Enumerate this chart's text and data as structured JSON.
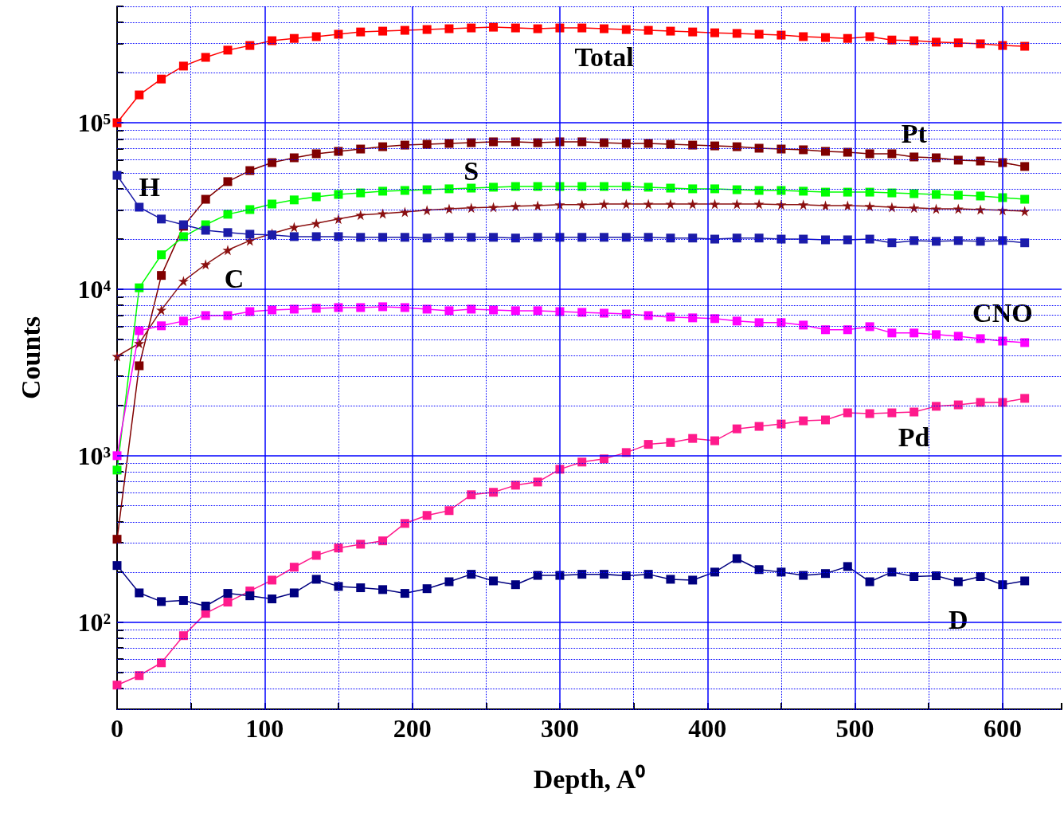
{
  "chart_data": {
    "type": "line",
    "xlabel": "Depth, A⁰",
    "ylabel": "Counts",
    "log": "y",
    "grid": true,
    "legend": false,
    "line_style": "solid",
    "x": [
      0,
      15,
      30,
      45,
      60,
      75,
      90,
      105,
      120,
      135,
      150,
      165,
      180,
      195,
      210,
      225,
      240,
      255,
      270,
      285,
      300,
      315,
      330,
      345,
      360,
      375,
      390,
      405,
      420,
      435,
      450,
      465,
      480,
      495,
      510,
      525,
      540,
      555,
      570,
      585,
      600,
      615
    ],
    "xlim": [
      0,
      640
    ],
    "xticks": [
      0,
      {
        "value": 50,
        "label": null
      },
      100,
      {
        "value": 150,
        "label": null
      },
      200,
      {
        "value": 250,
        "label": null
      },
      300,
      {
        "value": 350,
        "label": null
      },
      400,
      {
        "value": 450,
        "label": null
      },
      500,
      {
        "value": 550,
        "label": null
      },
      600
    ],
    "ylim": [
      30,
      500000
    ],
    "yticks": [
      {
        "value": 30,
        "label": null
      },
      {
        "value": 40,
        "label": null
      },
      {
        "value": 50,
        "label": null
      },
      {
        "value": 60,
        "label": null
      },
      {
        "value": 70,
        "label": null
      },
      {
        "value": 80,
        "label": null
      },
      {
        "value": 90,
        "label": null
      },
      {
        "value": 100,
        "label": "10²"
      },
      {
        "value": 200,
        "label": null
      },
      {
        "value": 300,
        "label": null
      },
      {
        "value": 400,
        "label": null
      },
      {
        "value": 500,
        "label": null
      },
      {
        "value": 600,
        "label": null
      },
      {
        "value": 700,
        "label": null
      },
      {
        "value": 800,
        "label": null
      },
      {
        "value": 900,
        "label": null
      },
      {
        "value": 1000,
        "label": "10³"
      },
      {
        "value": 2000,
        "label": null
      },
      {
        "value": 3000,
        "label": null
      },
      {
        "value": 4000,
        "label": null
      },
      {
        "value": 5000,
        "label": null
      },
      {
        "value": 6000,
        "label": null
      },
      {
        "value": 7000,
        "label": null
      },
      {
        "value": 8000,
        "label": null
      },
      {
        "value": 9000,
        "label": null
      },
      {
        "value": 10000,
        "label": "10⁴"
      },
      {
        "value": 20000,
        "label": null
      },
      {
        "value": 30000,
        "label": null
      },
      {
        "value": 40000,
        "label": null
      },
      {
        "value": 50000,
        "label": null
      },
      {
        "value": 60000,
        "label": null
      },
      {
        "value": 70000,
        "label": null
      },
      {
        "value": 80000,
        "label": null
      },
      {
        "value": 90000,
        "label": null
      },
      {
        "value": 100000,
        "label": "10⁵"
      },
      {
        "value": 200000,
        "label": null
      },
      {
        "value": 300000,
        "label": null
      },
      {
        "value": 400000,
        "label": null
      },
      {
        "value": 500000,
        "label": null
      }
    ],
    "series": [
      {
        "name": "Total",
        "color": "#ff0000",
        "marker": "square",
        "values": [
          100000,
          147000,
          183000,
          219000,
          247000,
          273000,
          291000,
          311000,
          321000,
          329000,
          340000,
          351000,
          355000,
          359000,
          363000,
          367000,
          371000,
          375000,
          371000,
          367000,
          371000,
          371000,
          367000,
          363000,
          359000,
          355000,
          351000,
          347000,
          344000,
          340000,
          336000,
          329000,
          325000,
          321000,
          329000,
          314000,
          311000,
          305000,
          302000,
          298000,
          291000,
          288000
        ]
      },
      {
        "name": "Pt",
        "color": "#800000",
        "marker": "square",
        "values": [
          315,
          3470,
          12100,
          23900,
          34700,
          44300,
          51600,
          57600,
          61600,
          65100,
          67300,
          69500,
          71800,
          73400,
          74200,
          75100,
          75900,
          76800,
          76800,
          75900,
          76800,
          76800,
          75900,
          75100,
          75100,
          74200,
          73400,
          72600,
          71800,
          70300,
          69500,
          68800,
          67300,
          66500,
          65100,
          65100,
          62300,
          61600,
          59600,
          58900,
          57600,
          54600
        ]
      },
      {
        "name": "S",
        "color": "#00ff00",
        "marker": "square",
        "values": [
          820,
          10200,
          16100,
          20700,
          24400,
          28200,
          30100,
          32500,
          34400,
          35900,
          37100,
          37900,
          38800,
          39200,
          39600,
          40100,
          40500,
          41000,
          41400,
          41400,
          41400,
          41400,
          41400,
          41400,
          41000,
          40500,
          40100,
          40100,
          39600,
          39200,
          39200,
          38800,
          38300,
          38300,
          38300,
          37900,
          37500,
          37100,
          36700,
          36300,
          35500,
          34700
        ]
      },
      {
        "name": "C",
        "color": "#8b1010",
        "marker": "star",
        "values": [
          3960,
          4730,
          7510,
          11200,
          14100,
          17200,
          19600,
          21600,
          23600,
          24900,
          26400,
          27900,
          28500,
          29100,
          29800,
          30400,
          30800,
          31100,
          31500,
          31800,
          32200,
          32200,
          32500,
          32500,
          32500,
          32500,
          32500,
          32500,
          32500,
          32500,
          32200,
          32200,
          31800,
          31800,
          31500,
          31100,
          30800,
          30400,
          30400,
          30100,
          29800,
          29400
        ]
      },
      {
        "name": "H",
        "color": "#1c1ca8",
        "marker": "square",
        "values": [
          48300,
          31100,
          26400,
          24400,
          22600,
          21900,
          21400,
          21200,
          20700,
          20700,
          20700,
          20500,
          20500,
          20500,
          20300,
          20500,
          20500,
          20500,
          20300,
          20500,
          20500,
          20500,
          20500,
          20500,
          20500,
          20300,
          20300,
          20000,
          20300,
          20300,
          20000,
          20000,
          19800,
          19800,
          20000,
          19000,
          19600,
          19400,
          19600,
          19400,
          19600,
          19000
        ]
      },
      {
        "name": "CNO",
        "color": "#ff00ff",
        "marker": "square",
        "values": [
          1000,
          5640,
          6030,
          6440,
          6950,
          6950,
          7340,
          7510,
          7590,
          7680,
          7760,
          7760,
          7850,
          7760,
          7590,
          7430,
          7590,
          7510,
          7430,
          7430,
          7340,
          7260,
          7180,
          7100,
          6950,
          6800,
          6730,
          6660,
          6440,
          6300,
          6300,
          6090,
          5710,
          5710,
          5960,
          5460,
          5460,
          5340,
          5220,
          5050,
          4880,
          4780
        ]
      },
      {
        "name": "Pd",
        "color": "#ff1a8c",
        "marker": "square",
        "values": [
          41.9,
          47.8,
          57,
          83,
          113,
          132,
          154,
          179,
          214,
          252,
          279,
          294,
          308,
          392,
          438,
          468,
          583,
          603,
          665,
          695,
          829,
          916,
          957,
          1045,
          1170,
          1200,
          1270,
          1230,
          1450,
          1500,
          1550,
          1620,
          1640,
          1810,
          1790,
          1810,
          1830,
          1980,
          2020,
          2090,
          2090,
          2210
        ]
      },
      {
        "name": "D",
        "color": "#000080",
        "marker": "square",
        "values": [
          219,
          150,
          133,
          135,
          125,
          149,
          144,
          138,
          150,
          181,
          164,
          161,
          157,
          149,
          159,
          175,
          194,
          177,
          168,
          191,
          191,
          194,
          194,
          190,
          194,
          181,
          179,
          200,
          241,
          207,
          200,
          191,
          196,
          216,
          175,
          200,
          188,
          190,
          175,
          188,
          168,
          177
        ]
      }
    ]
  }
}
